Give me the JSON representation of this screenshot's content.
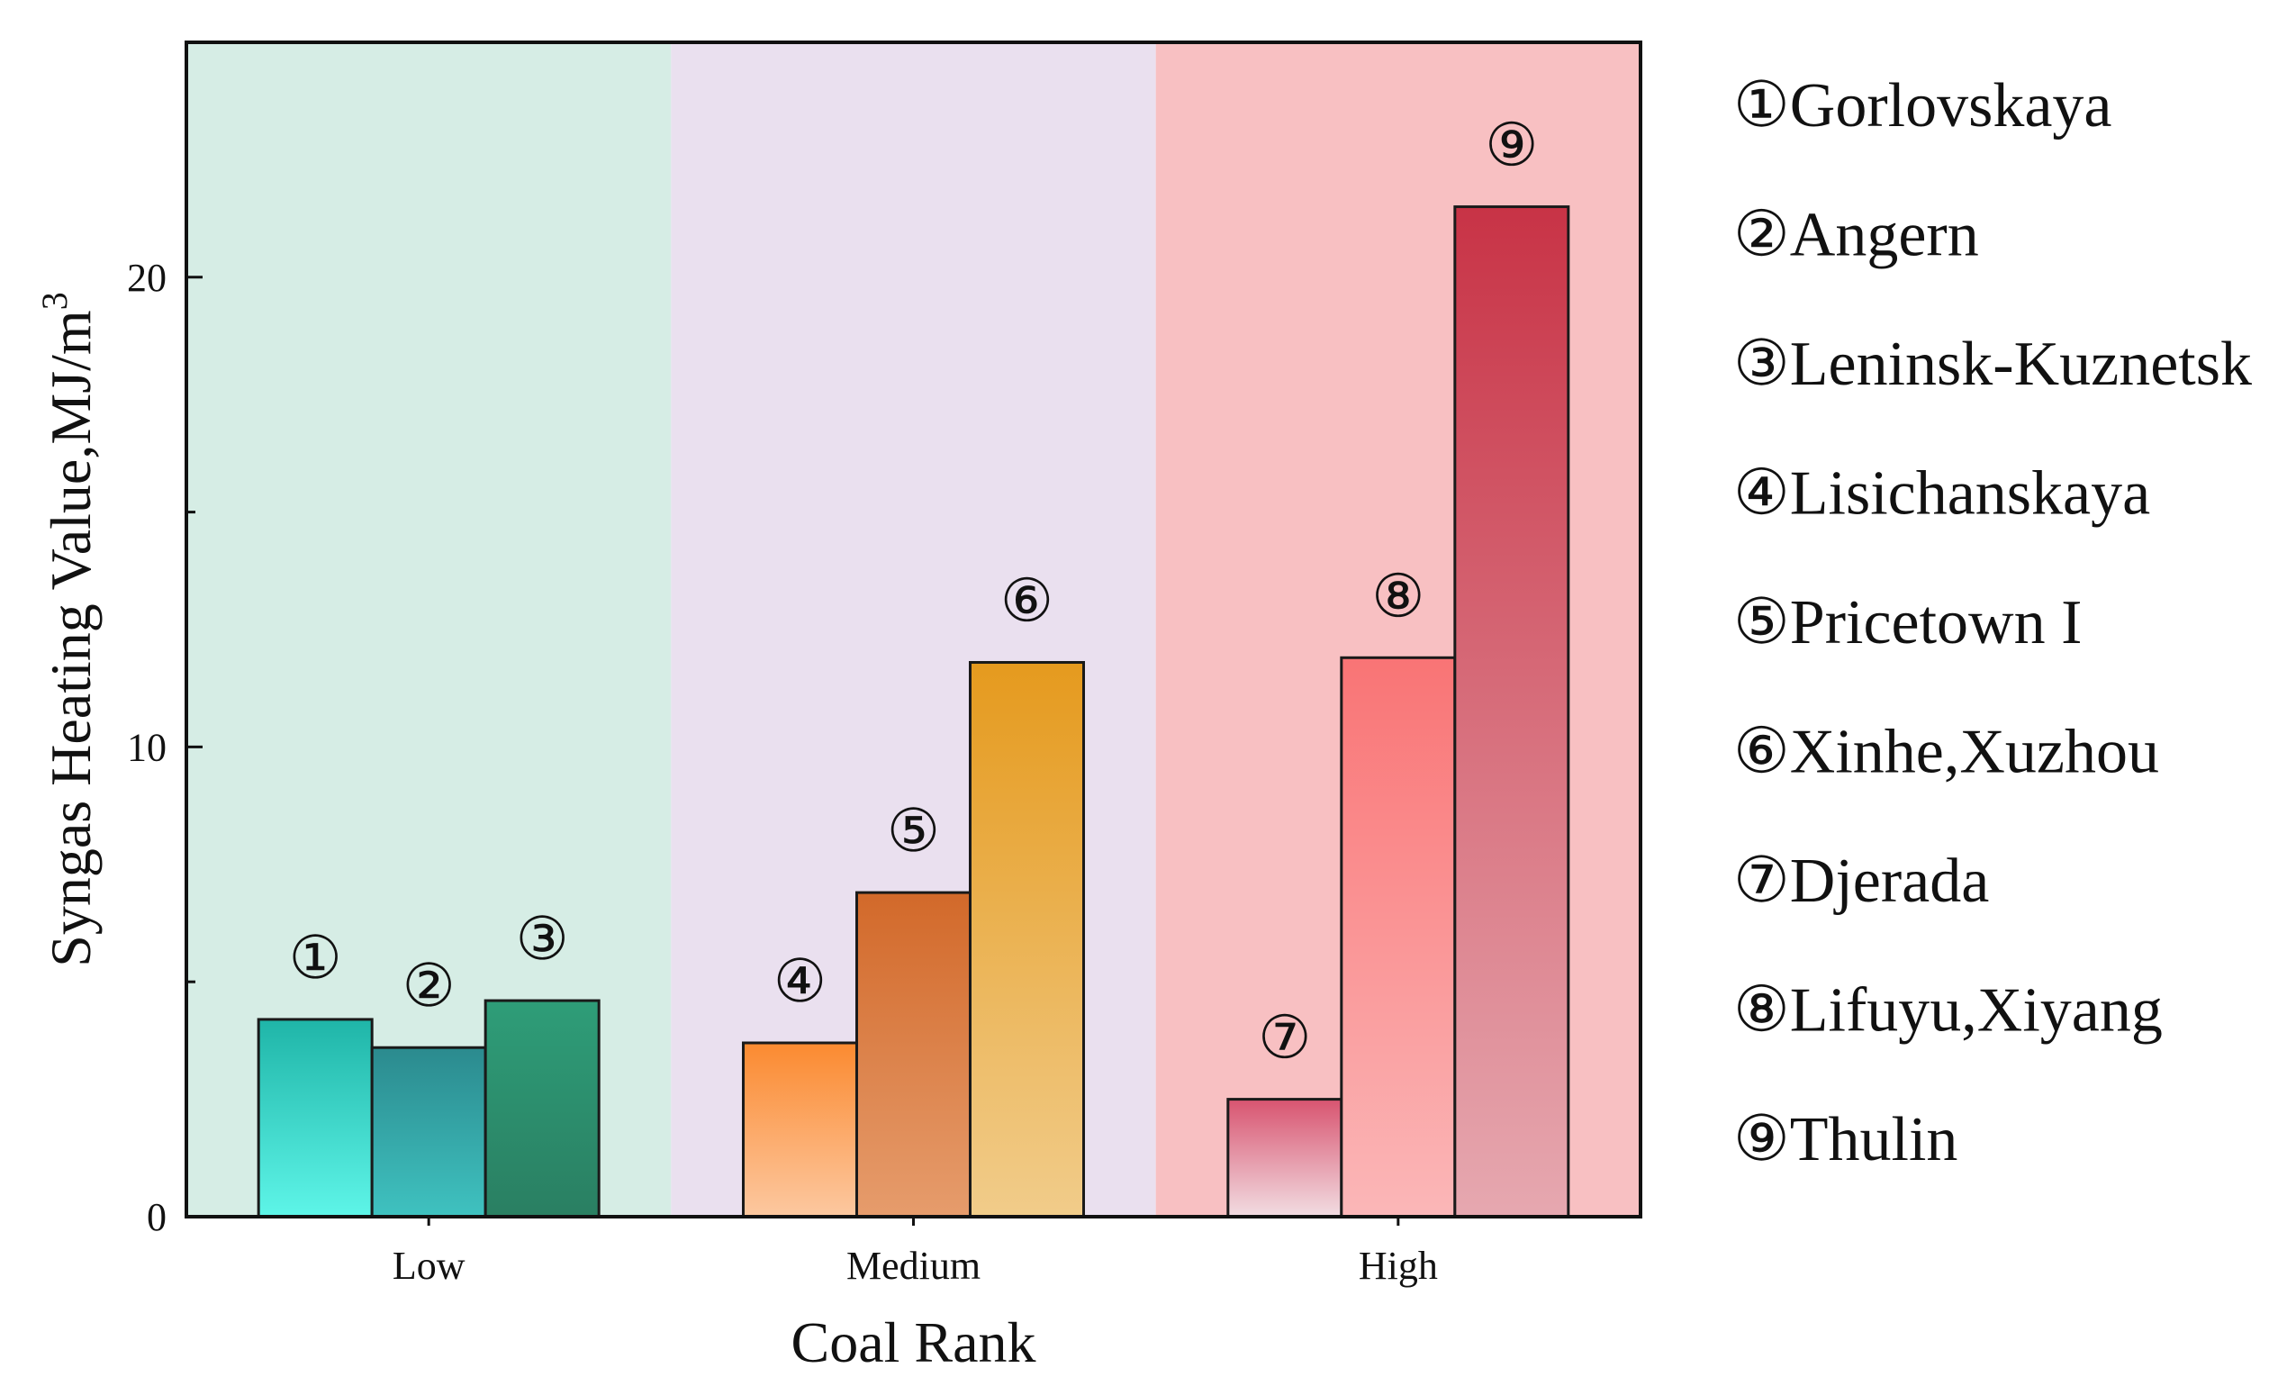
{
  "chart_data": {
    "type": "bar",
    "title": "",
    "xlabel": "Coal Rank",
    "ylabel": "Syngas Heating Value,MJ/m",
    "ylabel_superscript": "3",
    "ylim": [
      0,
      25
    ],
    "yticks": [
      0,
      10,
      20
    ],
    "groups": [
      {
        "name": "Low",
        "bg_color": "#d6ede5",
        "bars": [
          {
            "marker": "①",
            "name": "Gorlovskaya",
            "value": 4.2,
            "color_top": "#1fb5a8",
            "color_bottom": "#5ef5e8"
          },
          {
            "marker": "②",
            "name": "Angern",
            "value": 3.6,
            "color_top": "#2b8a8e",
            "color_bottom": "#3fc2c0"
          },
          {
            "marker": "③",
            "name": "Leninsk-Kuznetsk",
            "value": 4.6,
            "color_top": "#2e9d78",
            "color_bottom": "#2a7f62"
          }
        ]
      },
      {
        "name": "Medium",
        "bg_color": "#eae0ef",
        "bars": [
          {
            "marker": "④",
            "name": "Lisichanskaya",
            "value": 3.7,
            "color_top": "#fb8a30",
            "color_bottom": "#fcc8a0"
          },
          {
            "marker": "⑤",
            "name": "Pricetown I",
            "value": 6.9,
            "color_top": "#d2692a",
            "color_bottom": "#e69c6c"
          },
          {
            "marker": "⑥",
            "name": "Xinhe,Xuzhou",
            "value": 11.8,
            "color_top": "#e59a1e",
            "color_bottom": "#f1cc8a"
          }
        ]
      },
      {
        "name": "High",
        "bg_color": "#f8c0c2",
        "bars": [
          {
            "marker": "⑦",
            "name": "Djerada",
            "value": 2.5,
            "color_top": "#d85470",
            "color_bottom": "#f2dde2"
          },
          {
            "marker": "⑧",
            "name": "Lifuyu,Xiyang",
            "value": 11.9,
            "color_top": "#f97475",
            "color_bottom": "#fbb7b8"
          },
          {
            "marker": "⑨",
            "name": "Thulin",
            "value": 21.5,
            "color_top": "#c83346",
            "color_bottom": "#e6a8b0"
          }
        ]
      }
    ],
    "legend": [
      {
        "marker": "①",
        "label": "Gorlovskaya"
      },
      {
        "marker": "②",
        "label": "Angern"
      },
      {
        "marker": "③",
        "label": "Leninsk-Kuznetsk"
      },
      {
        "marker": "④",
        "label": "Lisichanskaya"
      },
      {
        "marker": "⑤",
        "label": "Pricetown I"
      },
      {
        "marker": "⑥",
        "label": "Xinhe,Xuzhou"
      },
      {
        "marker": "⑦",
        "label": "Djerada"
      },
      {
        "marker": "⑧",
        "label": "Lifuyu,Xiyang"
      },
      {
        "marker": "⑨",
        "label": "Thulin"
      }
    ],
    "legend_position": "right",
    "grid": false
  }
}
